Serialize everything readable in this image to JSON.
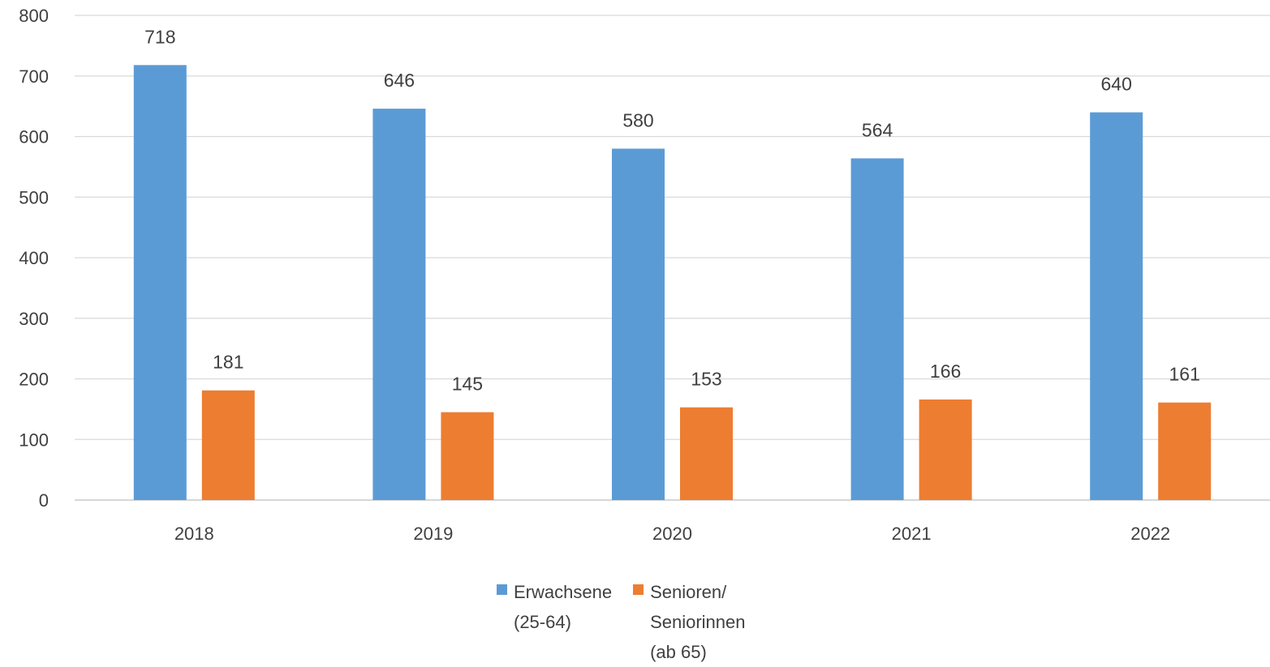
{
  "chart_data": {
    "type": "bar",
    "categories": [
      "2018",
      "2019",
      "2020",
      "2021",
      "2022"
    ],
    "series": [
      {
        "name": "Erwachsene\n(25-64)",
        "values": [
          718,
          646,
          580,
          564,
          640
        ],
        "color": "#5b9bd5"
      },
      {
        "name": "Senioren/\nSeniorinnen\n(ab 65)",
        "values": [
          181,
          145,
          153,
          166,
          161
        ],
        "color": "#ed7d31"
      }
    ],
    "ylim": [
      0,
      800
    ],
    "yticks": [
      0,
      100,
      200,
      300,
      400,
      500,
      600,
      700,
      800
    ],
    "grid": true,
    "legend_position": "bottom",
    "data_labels": true
  }
}
